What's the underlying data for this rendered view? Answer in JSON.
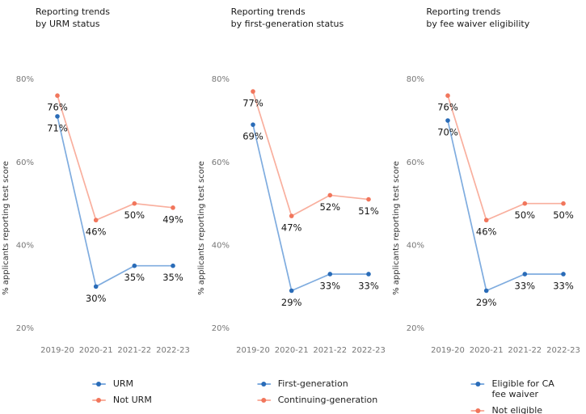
{
  "chart_data": [
    {
      "type": "line",
      "title": "Reporting trends\nby URM status",
      "ylabel": "% applicants reporting test score",
      "x": [
        "2019-20",
        "2020-21",
        "2021-22",
        "2022-23"
      ],
      "yticks": [
        80,
        60,
        40,
        20
      ],
      "ytick_suffix": "%",
      "ylim": [
        15,
        85
      ],
      "grid": false,
      "legend_position": "bottom",
      "series": [
        {
          "name": "URM",
          "color": "#2a6cb8",
          "line_color": "#7facdf",
          "values": [
            71,
            30,
            35,
            35
          ],
          "labels": [
            "71%",
            "30%",
            "35%",
            "35%"
          ]
        },
        {
          "name": "Not URM",
          "color": "#f1765c",
          "line_color": "#f9af9e",
          "values": [
            76,
            46,
            50,
            49
          ],
          "labels": [
            "76%",
            "46%",
            "50%",
            "49%"
          ]
        }
      ]
    },
    {
      "type": "line",
      "title": "Reporting trends\nby first-generation status",
      "ylabel": "% applicants reporting test score",
      "x": [
        "2019-20",
        "2020-21",
        "2021-22",
        "2022-23"
      ],
      "yticks": [
        80,
        60,
        40,
        20
      ],
      "ytick_suffix": "%",
      "ylim": [
        15,
        85
      ],
      "grid": false,
      "legend_position": "bottom",
      "series": [
        {
          "name": "First-generation",
          "color": "#2a6cb8",
          "line_color": "#7facdf",
          "values": [
            69,
            29,
            33,
            33
          ],
          "labels": [
            "69%",
            "29%",
            "33%",
            "33%"
          ]
        },
        {
          "name": "Continuing-generation",
          "color": "#f1765c",
          "line_color": "#f9af9e",
          "values": [
            77,
            47,
            52,
            51
          ],
          "labels": [
            "77%",
            "47%",
            "52%",
            "51%"
          ]
        }
      ]
    },
    {
      "type": "line",
      "title": "Reporting trends\nby fee waiver eligibility",
      "ylabel": "% applicants reporting test score",
      "x": [
        "2019-20",
        "2020-21",
        "2021-22",
        "2022-23"
      ],
      "yticks": [
        80,
        60,
        40,
        20
      ],
      "ytick_suffix": "%",
      "ylim": [
        15,
        85
      ],
      "grid": false,
      "legend_position": "bottom",
      "series": [
        {
          "name": "Eligible for CA\nfee waiver",
          "color": "#2a6cb8",
          "line_color": "#7facdf",
          "values": [
            70,
            29,
            33,
            33
          ],
          "labels": [
            "70%",
            "29%",
            "33%",
            "33%"
          ]
        },
        {
          "name": "Not eligible",
          "color": "#f1765c",
          "line_color": "#f9af9e",
          "values": [
            76,
            46,
            50,
            50
          ],
          "labels": [
            "76%",
            "46%",
            "50%",
            "50%"
          ]
        }
      ]
    }
  ]
}
